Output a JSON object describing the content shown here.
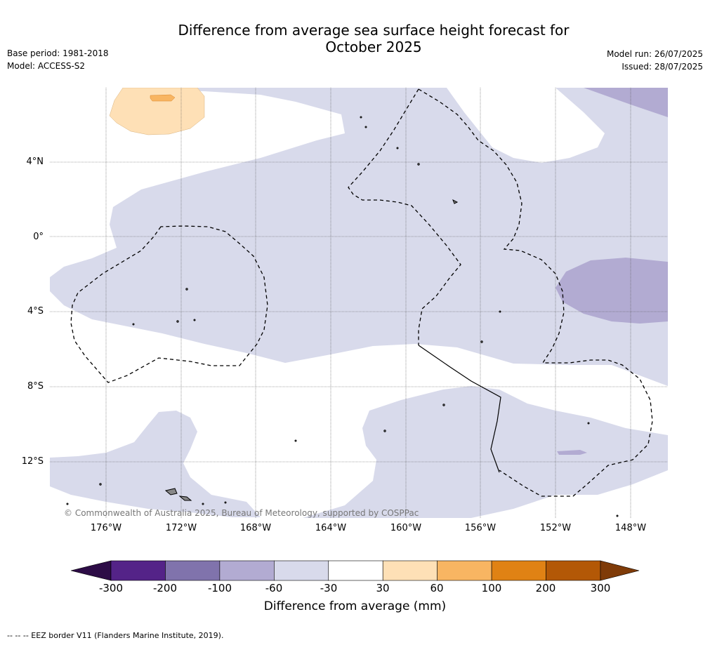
{
  "title_line1": "Difference from average sea surface height forecast for",
  "title_line2": "October 2025",
  "base_period": "Base period: 1981-2018",
  "model": "Model: ACCESS-S2",
  "model_run": "Model run: 26/07/2025",
  "issued": "Issued: 28/07/2025",
  "lat_labels": [
    "4°N",
    "0°",
    "4°S",
    "8°S",
    "12°S"
  ],
  "lon_labels": [
    "176°W",
    "172°W",
    "168°W",
    "164°W",
    "160°W",
    "156°W",
    "152°W",
    "148°W"
  ],
  "copyright": "© Commonwealth of Australia 2025, Bureau of Meteorology, supported by COSPPac",
  "colorbar": {
    "ticks": [
      "-300",
      "-200",
      "-100",
      "-60",
      "-30",
      "30",
      "60",
      "100",
      "200",
      "300"
    ],
    "colors": [
      "#542388",
      "#8073ac",
      "#b2abd2",
      "#d8daeb",
      "#ffffff",
      "#fee0b6",
      "#f8b562",
      "#e08214",
      "#b35806"
    ],
    "low_extend_color": "#2d0c46",
    "high_extend_color": "#7f3b08",
    "label": "Difference from average (mm)"
  },
  "footnote": "--  --  -- EEZ border V11 (Flanders Marine Institute, 2019)."
}
